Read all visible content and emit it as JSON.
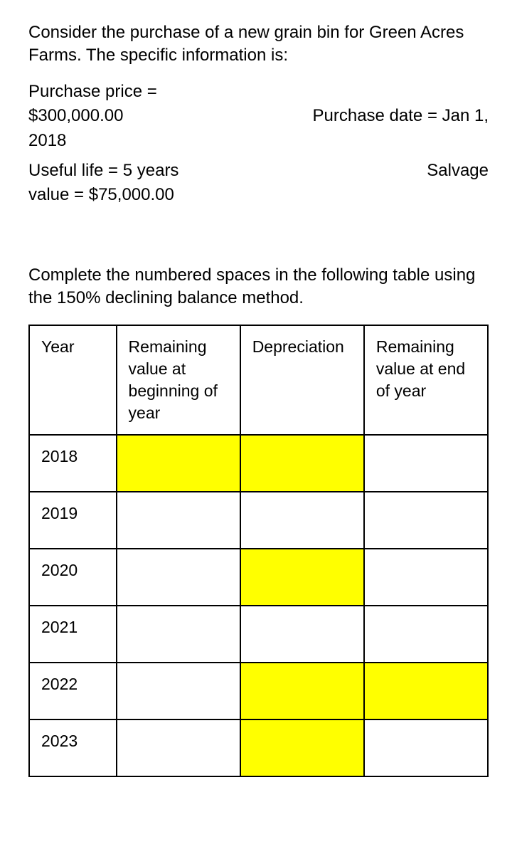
{
  "intro": "Consider the purchase of a new grain bin for Green Acres Farms. The specific information is:",
  "spec": {
    "price_label": "Purchase price =",
    "price_value": "$300,000.00",
    "date_label": "Purchase date = Jan 1,",
    "date_year": "2018",
    "life_label": "Useful life = 5 years",
    "salvage_label": "Salvage",
    "salvage_line2": "value = $75,000.00"
  },
  "instruction": "Complete the numbered spaces in the following table using the 150% declining balance method.",
  "table": {
    "columns": [
      "Year",
      "Remaining value at beginning of year",
      "Depreciation",
      "Remaining value at end of year"
    ],
    "col_widths_pct": [
      19,
      27,
      27,
      27
    ],
    "rows": [
      {
        "year": "2018",
        "beg": "",
        "dep": "",
        "end": "",
        "hl_beg": true,
        "hl_dep": true,
        "hl_end": false
      },
      {
        "year": "2019",
        "beg": "",
        "dep": "",
        "end": "",
        "hl_beg": false,
        "hl_dep": false,
        "hl_end": false
      },
      {
        "year": "2020",
        "beg": "",
        "dep": "",
        "end": "",
        "hl_beg": false,
        "hl_dep": true,
        "hl_end": false
      },
      {
        "year": "2021",
        "beg": "",
        "dep": "",
        "end": "",
        "hl_beg": false,
        "hl_dep": false,
        "hl_end": false
      },
      {
        "year": "2022",
        "beg": "",
        "dep": "",
        "end": "",
        "hl_beg": false,
        "hl_dep": true,
        "hl_end": true
      },
      {
        "year": "2023",
        "beg": "",
        "dep": "",
        "end": "",
        "hl_beg": false,
        "hl_dep": true,
        "hl_end": false
      }
    ],
    "highlight_color": "#ffff00",
    "border_color": "#000000"
  }
}
